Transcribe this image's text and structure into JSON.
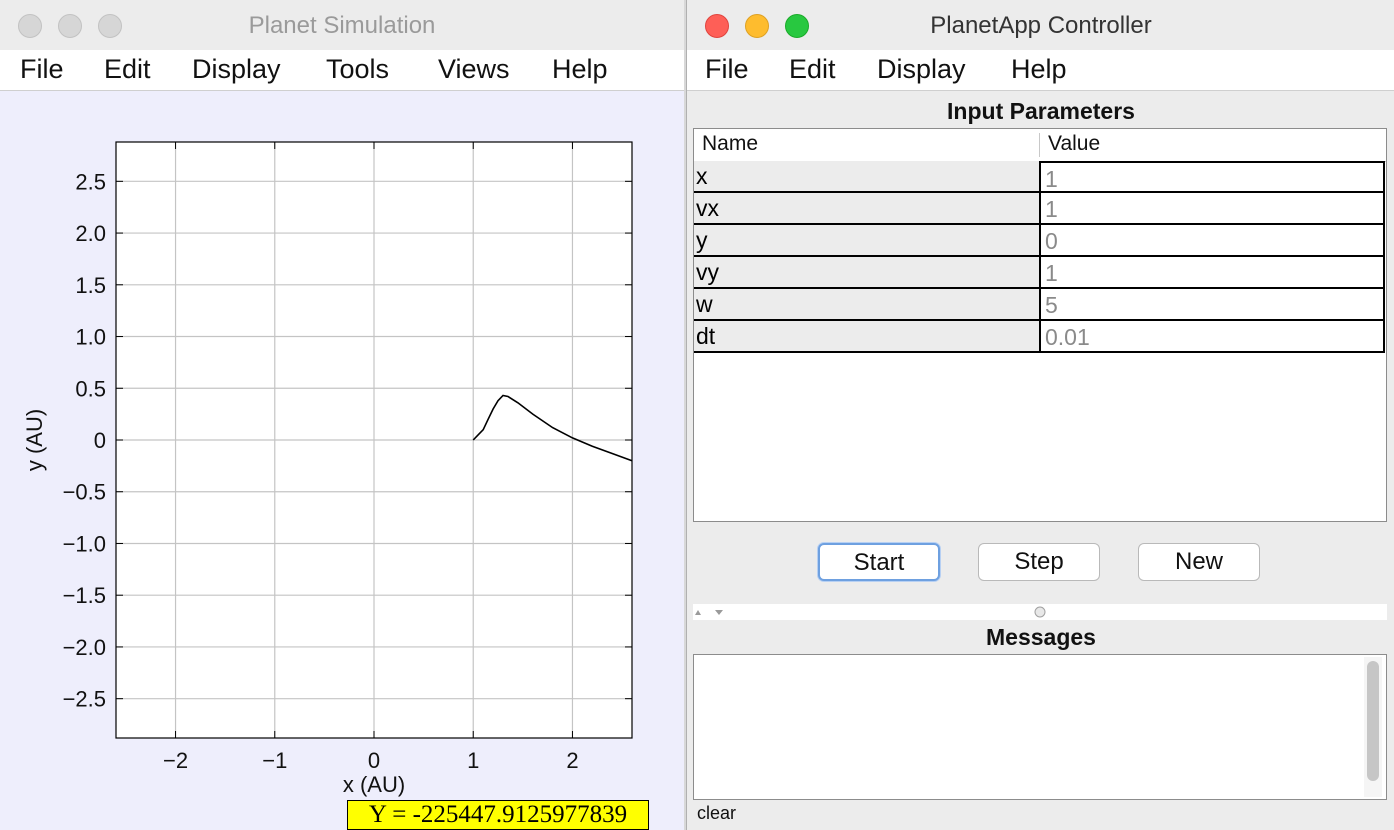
{
  "left_window": {
    "title": "Planet Simulation",
    "menu": [
      "File",
      "Edit",
      "Display",
      "Tools",
      "Views",
      "Help"
    ],
    "readout": "Y = -225447.9125977839"
  },
  "chart_data": {
    "type": "line",
    "xlabel": "x (AU)",
    "ylabel": "y (AU)",
    "xlim": [
      -2.6,
      2.6
    ],
    "ylim": [
      -2.88,
      2.88
    ],
    "x_ticks": [
      -2,
      -1,
      0,
      1,
      2
    ],
    "x_tick_labels": [
      "−2",
      "−1",
      "0",
      "1",
      "2"
    ],
    "y_ticks": [
      2.5,
      2.0,
      1.5,
      1.0,
      0.5,
      0,
      -0.5,
      -1.0,
      -1.5,
      -2.0,
      -2.5
    ],
    "y_tick_labels": [
      "2.5",
      "2.0",
      "1.5",
      "1.0",
      "0.5",
      "0",
      "−0.5",
      "−1.0",
      "−1.5",
      "−2.0",
      "−2.5"
    ],
    "grid": true,
    "series": [
      {
        "x": [
          1.0,
          1.05,
          1.1,
          1.15,
          1.2,
          1.25,
          1.3,
          1.35,
          1.45,
          1.6,
          1.8,
          2.0,
          2.2,
          2.4,
          2.6
        ],
        "y": [
          0.0,
          0.05,
          0.1,
          0.2,
          0.3,
          0.38,
          0.43,
          0.42,
          0.36,
          0.25,
          0.12,
          0.02,
          -0.06,
          -0.13,
          -0.2
        ]
      }
    ]
  },
  "right_window": {
    "title": "PlanetApp Controller",
    "menu": [
      "File",
      "Edit",
      "Display",
      "Help"
    ],
    "input_title": "Input Parameters",
    "columns": [
      "Name",
      "Value"
    ],
    "params": [
      {
        "name": "x",
        "value": "1"
      },
      {
        "name": "vx",
        "value": "1"
      },
      {
        "name": "y",
        "value": "0"
      },
      {
        "name": "vy",
        "value": "1"
      },
      {
        "name": "w",
        "value": "5"
      },
      {
        "name": "dt",
        "value": "0.01"
      }
    ],
    "buttons": {
      "start": "Start",
      "step": "Step",
      "new": "New"
    },
    "messages_title": "Messages",
    "clear_label": "clear"
  }
}
